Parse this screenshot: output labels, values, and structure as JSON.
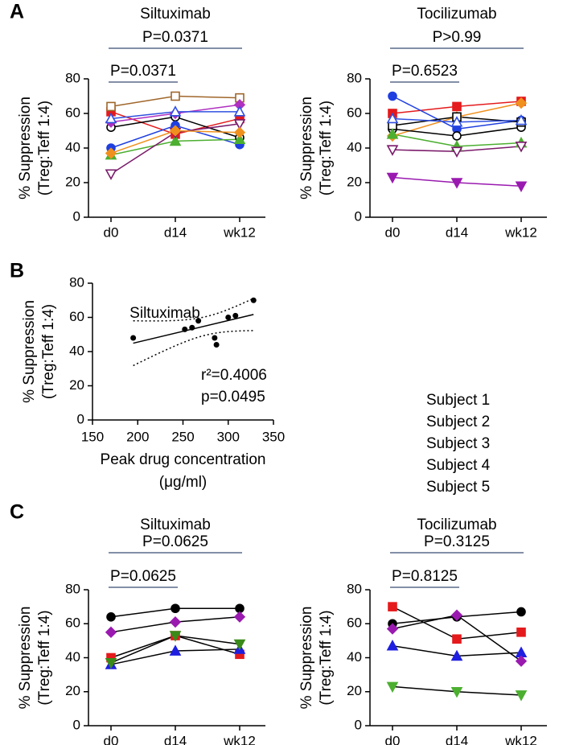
{
  "chart_data": [
    {
      "type": "line",
      "panel": "A",
      "title": "Siltuximab",
      "ylabel": [
        "% Suppression",
        "(Treg:Teff 1:4)"
      ],
      "categories": [
        "d0",
        "d14",
        "wk12"
      ],
      "ylim": [
        0,
        80
      ],
      "yticks": [
        0,
        20,
        40,
        60,
        80
      ],
      "annotations": [
        {
          "text": "P=0.0371",
          "span": [
            "d0",
            "wk12"
          ]
        },
        {
          "text": "P=0.0371",
          "span": [
            "d0",
            "d14"
          ]
        }
      ],
      "series": [
        {
          "color": "#e41a1c",
          "marker": "square",
          "filled": true,
          "values": [
            61,
            48,
            57
          ]
        },
        {
          "color": "#a0662a",
          "marker": "square",
          "filled": false,
          "values": [
            64,
            70,
            69
          ]
        },
        {
          "color": "#000000",
          "marker": "circle",
          "filled": false,
          "values": [
            52,
            58,
            46
          ]
        },
        {
          "color": "#1f3fe0",
          "marker": "circle",
          "filled": true,
          "values": [
            40,
            53,
            42
          ]
        },
        {
          "color": "#4caf30",
          "marker": "triangle",
          "filled": true,
          "values": [
            36,
            44,
            45
          ]
        },
        {
          "color": "#7a1a6a",
          "marker": "triangle-down",
          "filled": false,
          "values": [
            25,
            49,
            54
          ]
        },
        {
          "color": "#f0901e",
          "marker": "diamond",
          "filled": true,
          "values": [
            37,
            50,
            49
          ]
        },
        {
          "color": "#b030c0",
          "marker": "diamond",
          "filled": true,
          "values": [
            55,
            60,
            65
          ]
        },
        {
          "color": "#3050e0",
          "marker": "triangle",
          "filled": false,
          "values": [
            57,
            61,
            61
          ]
        }
      ]
    },
    {
      "type": "line",
      "title": "Tocilizumab",
      "ylabel": [
        "% Suppression",
        "(Treg:Teff 1:4)"
      ],
      "categories": [
        "d0",
        "d14",
        "wk12"
      ],
      "ylim": [
        0,
        80
      ],
      "yticks": [
        0,
        20,
        40,
        60,
        80
      ],
      "annotations": [
        {
          "text": "P>0.99",
          "span": [
            "d0",
            "wk12"
          ]
        },
        {
          "text": "P=0.6523",
          "span": [
            "d0",
            "d14"
          ]
        }
      ],
      "series": [
        {
          "color": "#e41a1c",
          "marker": "square",
          "filled": true,
          "values": [
            60,
            64,
            67
          ]
        },
        {
          "color": "#1f3fe0",
          "marker": "circle",
          "filled": true,
          "values": [
            70,
            51,
            56
          ]
        },
        {
          "color": "#f0901e",
          "marker": "diamond",
          "filled": true,
          "values": [
            47,
            58,
            66
          ]
        },
        {
          "color": "#000000",
          "marker": "circle",
          "filled": false,
          "values": [
            51,
            47,
            52
          ]
        },
        {
          "color": "#000000",
          "marker": "square",
          "filled": false,
          "values": [
            53,
            58,
            55
          ]
        },
        {
          "color": "#3050e0",
          "marker": "triangle",
          "filled": false,
          "values": [
            57,
            55,
            56
          ]
        },
        {
          "color": "#4caf30",
          "marker": "triangle",
          "filled": true,
          "values": [
            48,
            41,
            43
          ]
        },
        {
          "color": "#7a1a6a",
          "marker": "triangle-down",
          "filled": false,
          "values": [
            39,
            38,
            41
          ]
        },
        {
          "color": "#9a1ab0",
          "marker": "triangle-down",
          "filled": true,
          "values": [
            23,
            20,
            18
          ]
        }
      ]
    },
    {
      "type": "scatter",
      "panel": "B",
      "title": "Siltuximab",
      "ylabel": [
        "% Suppression",
        "(Treg:Teff 1:4)"
      ],
      "xlabel": [
        "Peak drug concentration",
        "(μg/ml)"
      ],
      "annotations": [
        "r²=0.4006",
        "p=0.0495"
      ],
      "fit": true,
      "x": [
        195,
        252,
        260,
        267,
        285,
        287,
        300,
        308,
        328
      ],
      "y": [
        48,
        53,
        54,
        58,
        48,
        44,
        60,
        61,
        70
      ],
      "color": "#000000",
      "xlim": [
        150,
        350
      ],
      "xticks": [
        150,
        200,
        250,
        300,
        350
      ],
      "ylim": [
        0,
        80
      ],
      "yticks": [
        0,
        20,
        40,
        60,
        80
      ]
    },
    {
      "type": "line",
      "panel": "C",
      "title": "Siltuximab",
      "ylabel": [
        "% Suppression",
        "(Treg:Teff 1:4)"
      ],
      "categories": [
        "d0",
        "d14",
        "wk12"
      ],
      "ylim": [
        0,
        80
      ],
      "yticks": [
        0,
        20,
        40,
        60,
        80
      ],
      "line_color": "#000000",
      "annotations": [
        {
          "text": "P=0.0625",
          "span": [
            "d0",
            "wk12"
          ]
        },
        {
          "text": "P=0.0625",
          "span": [
            "d0",
            "d14"
          ]
        }
      ],
      "series": [
        {
          "name": "Subject 1",
          "color": "#e41a1c",
          "marker": "square",
          "filled": true,
          "values": [
            40,
            53,
            42
          ]
        },
        {
          "name": "Subject 2",
          "color": "#000000",
          "marker": "circle",
          "filled": true,
          "values": [
            64,
            69,
            69
          ]
        },
        {
          "name": "Subject 3",
          "color": "#1f1fe0",
          "marker": "triangle",
          "filled": true,
          "values": [
            36,
            44,
            45
          ]
        },
        {
          "name": "Subject 4",
          "color": "#3a8a1a",
          "marker": "triangle-down",
          "filled": true,
          "values": [
            37,
            53,
            48
          ]
        },
        {
          "name": "Subject 5",
          "color": "#9a1ab0",
          "marker": "diamond",
          "filled": true,
          "values": [
            55,
            61,
            64
          ]
        }
      ]
    },
    {
      "type": "line",
      "title": "Tocilizumab",
      "ylabel": [
        "% Suppression",
        "(Treg:Teff 1:4)"
      ],
      "categories": [
        "d0",
        "d14",
        "wk12"
      ],
      "ylim": [
        0,
        80
      ],
      "yticks": [
        0,
        20,
        40,
        60,
        80
      ],
      "line_color": "#000000",
      "annotations": [
        {
          "text": "P=0.3125",
          "span": [
            "d0",
            "wk12"
          ]
        },
        {
          "text": "P=0.8125",
          "span": [
            "d0",
            "d14"
          ]
        }
      ],
      "series": [
        {
          "color": "#e41a1c",
          "marker": "square",
          "filled": true,
          "values": [
            70,
            51,
            55
          ]
        },
        {
          "color": "#000000",
          "marker": "circle",
          "filled": true,
          "values": [
            60,
            64,
            67
          ]
        },
        {
          "color": "#1f1fe0",
          "marker": "triangle",
          "filled": true,
          "values": [
            47,
            41,
            43
          ]
        },
        {
          "color": "#4caf30",
          "marker": "triangle-down",
          "filled": true,
          "values": [
            23,
            20,
            18
          ]
        },
        {
          "color": "#9a1ab0",
          "marker": "diamond",
          "filled": true,
          "values": [
            57,
            65,
            38
          ]
        }
      ]
    }
  ]
}
